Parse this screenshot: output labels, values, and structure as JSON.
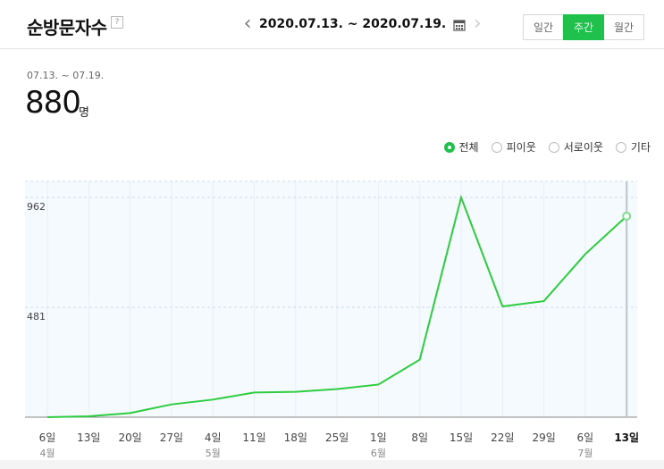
{
  "header": {
    "title": "순방문자수",
    "help": "?",
    "range": "2020.07.13. ~ 2020.07.19.",
    "periods": [
      {
        "label": "일간",
        "active": false
      },
      {
        "label": "주간",
        "active": true
      },
      {
        "label": "월간",
        "active": false
      }
    ]
  },
  "summary": {
    "date": "07.13. ~ 07.19.",
    "value": "880",
    "unit": "명"
  },
  "legend": [
    {
      "label": "전체",
      "selected": true
    },
    {
      "label": "피이웃",
      "selected": false
    },
    {
      "label": "서로이웃",
      "selected": false
    },
    {
      "label": "기타",
      "selected": false
    }
  ],
  "colors": {
    "accent": "#1fc04c",
    "line": "#2ecc3f"
  },
  "chart_data": {
    "type": "line",
    "categories": [
      "6일",
      "13일",
      "20일",
      "27일",
      "4일",
      "11일",
      "18일",
      "25일",
      "1일",
      "8일",
      "15일",
      "22일",
      "29일",
      "6일",
      "13일"
    ],
    "month_labels": [
      "4월",
      "",
      "",
      "",
      "5월",
      "",
      "",
      "",
      "6월",
      "",
      "",
      "",
      "",
      "7월",
      ""
    ],
    "values": [
      0,
      4,
      18,
      56,
      77,
      108,
      111,
      123,
      143,
      252,
      962,
      485,
      508,
      714,
      880
    ],
    "yticks": [
      962,
      481
    ],
    "ylim": [
      0,
      962
    ],
    "highlight_index": 14,
    "grid": true
  }
}
